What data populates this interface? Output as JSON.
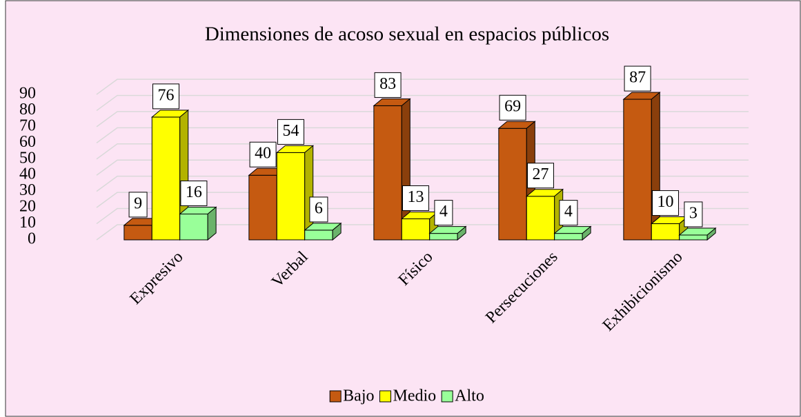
{
  "chart_data": {
    "type": "bar",
    "title": "Dimensiones de acoso sexual en espacios públicos",
    "categories": [
      "Expresivo",
      "Verbal",
      "Físico",
      "Persecuciones",
      "Exhibicionismo"
    ],
    "series": [
      {
        "name": "Bajo",
        "color": "#c55a11",
        "values": [
          9,
          40,
          83,
          69,
          87
        ]
      },
      {
        "name": "Medio",
        "color": "#ffff00",
        "values": [
          76,
          54,
          13,
          27,
          10
        ]
      },
      {
        "name": "Alto",
        "color": "#99ff99",
        "values": [
          16,
          6,
          4,
          4,
          3
        ]
      }
    ],
    "ylim": [
      0,
      90
    ],
    "yticks": [
      0,
      10,
      20,
      30,
      40,
      50,
      60,
      70,
      80,
      90
    ],
    "grid": true,
    "legend": "bottom"
  }
}
